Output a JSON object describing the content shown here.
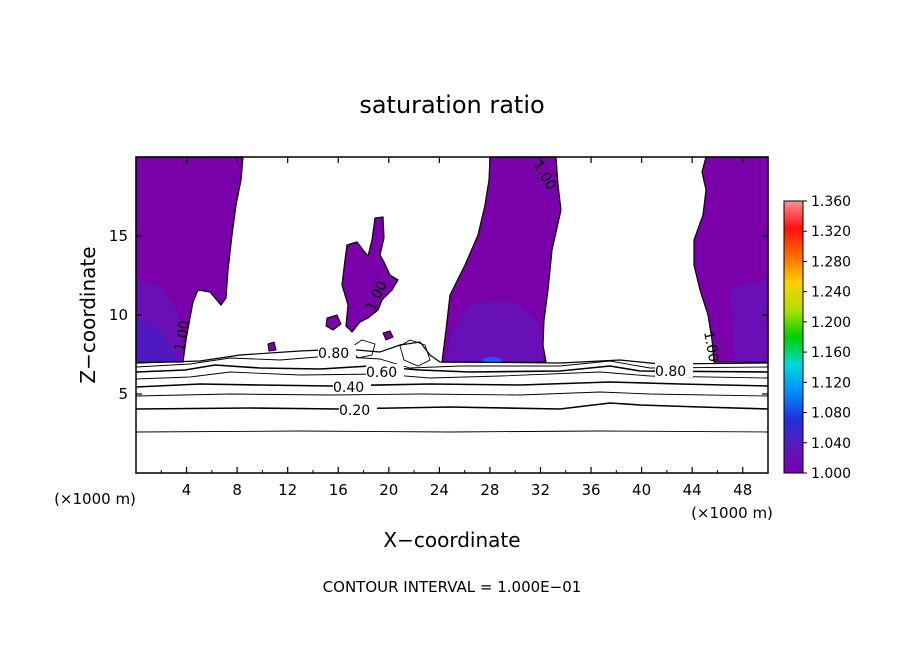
{
  "chart_data": {
    "type": "heatmap",
    "title": "saturation ratio",
    "xlabel": "X−coordinate",
    "ylabel": "Z−coordinate",
    "x_unit_label": "(×1000 m)",
    "z_unit_label": "(×1000 m)",
    "xlim": [
      0,
      50
    ],
    "ylim": [
      0,
      20
    ],
    "x_ticks": [
      "4",
      "8",
      "12",
      "16",
      "20",
      "24",
      "28",
      "32",
      "36",
      "40",
      "44",
      "48"
    ],
    "y_ticks": [
      "5",
      "10",
      "15"
    ],
    "footer": "CONTOUR INTERVAL = 1.000E−01",
    "colorbar": {
      "ticks": [
        "1.000",
        "1.040",
        "1.080",
        "1.120",
        "1.160",
        "1.200",
        "1.240",
        "1.280",
        "1.320",
        "1.360"
      ],
      "range": [
        1.0,
        1.36
      ],
      "colors": [
        "#7a00aa",
        "#5a1bbf",
        "#2030d8",
        "#0090ff",
        "#00d8d8",
        "#00d000",
        "#b0e000",
        "#ffd000",
        "#ff6a00",
        "#ff1010",
        "#ff9090"
      ]
    },
    "contour_labels": [
      {
        "text": "1.00",
        "x": 1.0,
        "z": 8.5
      },
      {
        "text": "1.00",
        "x": 19.0,
        "z": 10.5
      },
      {
        "text": "1.00",
        "x": 32.0,
        "z": 19.0
      },
      {
        "text": "1.00",
        "x": 45.0,
        "z": 8.5
      },
      {
        "text": "0.80",
        "x": 16.0,
        "z": 7.5
      },
      {
        "text": "0.80",
        "x": 42.8,
        "z": 6.4
      },
      {
        "text": "0.60",
        "x": 20.0,
        "z": 6.3
      },
      {
        "text": "0.40",
        "x": 16.0,
        "z": 5.4
      },
      {
        "text": "0.20",
        "x": 17.0,
        "z": 4.0
      }
    ],
    "contour_levels_z_profile": [
      2.6,
      3.6,
      4.2,
      4.9,
      5.4,
      5.9,
      6.4,
      6.7,
      7.0
    ],
    "supersaturated_regions": [
      {
        "name": "left column",
        "x": [
          0,
          8.5
        ],
        "z": [
          7,
          20
        ]
      },
      {
        "name": "central plume",
        "x": [
          14,
          21
        ],
        "z": [
          9,
          16
        ]
      },
      {
        "name": "center-right column",
        "x": [
          24.5,
          34
        ],
        "z": [
          7,
          20
        ]
      },
      {
        "name": "right column",
        "x": [
          44.5,
          50
        ],
        "z": [
          7,
          20
        ]
      }
    ]
  }
}
